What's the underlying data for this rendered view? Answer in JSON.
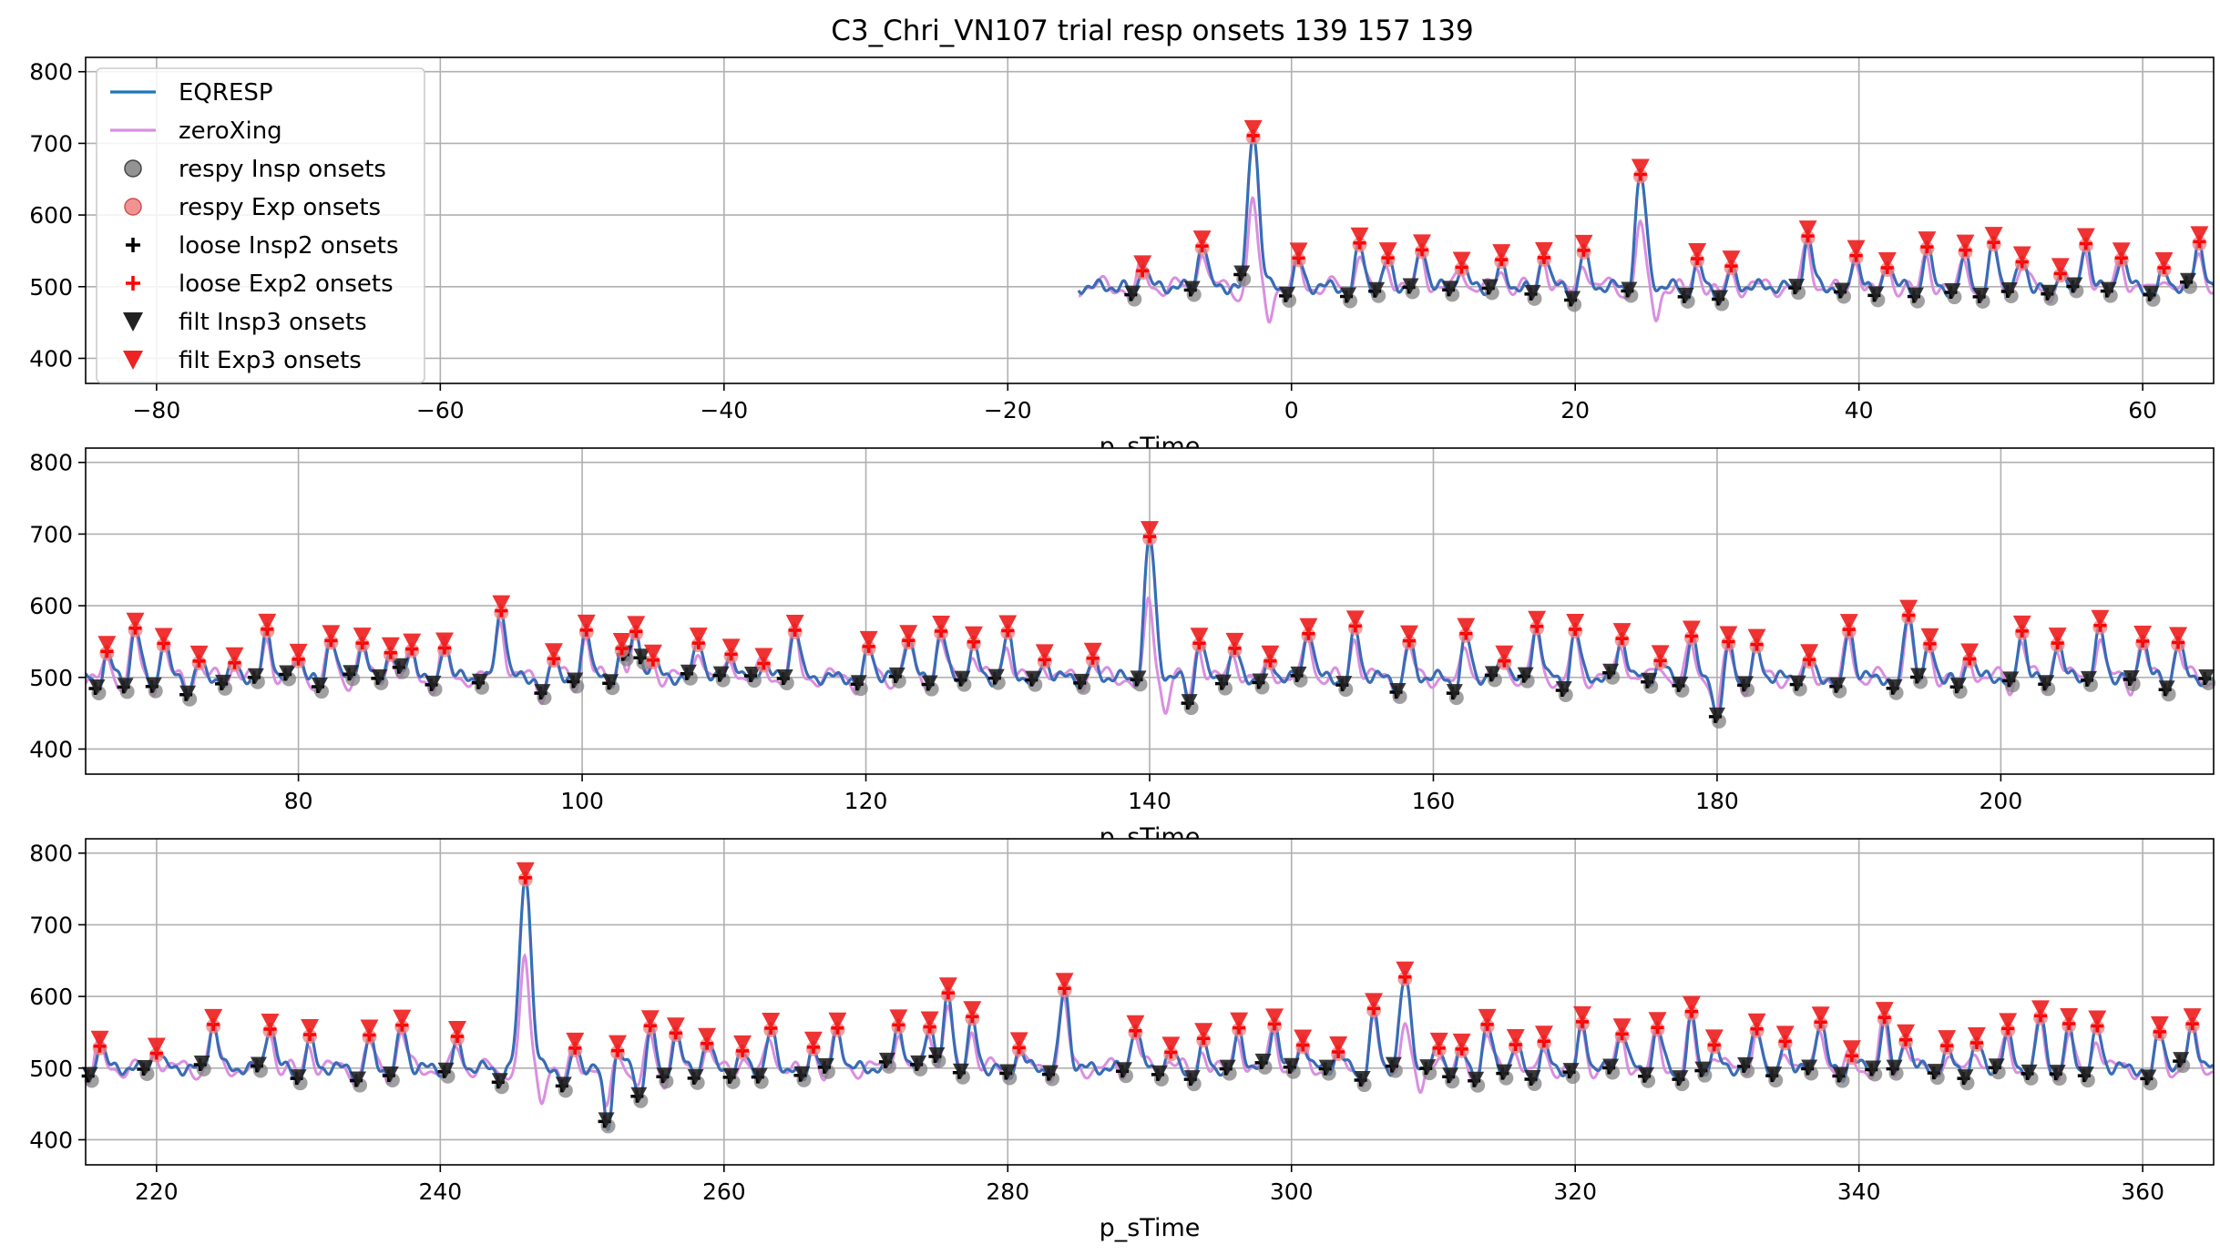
{
  "title": "C3_Chri_VN107 trial resp onsets 139 157 139",
  "legend": [
    {
      "label": "EQRESP",
      "kind": "line",
      "color": "#1f77b4"
    },
    {
      "label": "zeroXing",
      "kind": "line",
      "color": "#da8fe0"
    },
    {
      "label": "respy Insp onsets",
      "kind": "circle",
      "color": "#808080"
    },
    {
      "label": "respy Exp onsets",
      "kind": "circle",
      "color": "#f08080"
    },
    {
      "label": "loose Insp2 onsets",
      "kind": "plus",
      "color": "#000000"
    },
    {
      "label": "loose Exp2 onsets",
      "kind": "plus",
      "color": "#ff0000"
    },
    {
      "label": "filt Insp3 onsets",
      "kind": "tri",
      "color": "#222222"
    },
    {
      "label": "filt Exp3 onsets",
      "kind": "tri",
      "color": "#ee2222"
    }
  ],
  "chart_data": [
    {
      "type": "line",
      "xlabel": "p_sTime",
      "ylabel": "",
      "xlim": [
        -85,
        65
      ],
      "ylim": [
        365,
        820
      ],
      "xticks": [
        -80,
        -60,
        -40,
        -20,
        0,
        20,
        40,
        60
      ],
      "yticks": [
        400,
        500,
        600,
        700,
        800
      ],
      "grid": true,
      "legend_position": "top-left",
      "signal_start": -15,
      "big_peaks": [
        {
          "x": -2.7,
          "y": 720
        },
        {
          "x": 24.6,
          "y": 655
        }
      ],
      "exp_onsets": [
        -10.5,
        -6.3,
        -2.7,
        0.5,
        4.8,
        6.8,
        9.2,
        12,
        14.8,
        17.8,
        20.6,
        24.6,
        28.6,
        31,
        36.4,
        39.8,
        42,
        44.8,
        47.5,
        49.5,
        51.5,
        54.2,
        56,
        58.5,
        61.5,
        64
      ],
      "insp_onsets": [
        -11.2,
        -7,
        -3.5,
        -0.3,
        4,
        6,
        8.4,
        11.2,
        14,
        17,
        19.8,
        23.8,
        27.8,
        30.2,
        35.6,
        38.8,
        41.2,
        44,
        46.6,
        48.6,
        50.6,
        53.4,
        55.2,
        57.6,
        60.6,
        63.2
      ]
    },
    {
      "type": "line",
      "xlabel": "p_sTime",
      "ylabel": "",
      "xlim": [
        65,
        215
      ],
      "ylim": [
        365,
        820
      ],
      "xticks": [
        80,
        100,
        120,
        140,
        160,
        180,
        200
      ],
      "yticks": [
        400,
        500,
        600,
        700,
        800
      ],
      "grid": true,
      "signal_start": 65,
      "big_peaks": [
        {
          "x": 140,
          "y": 695
        },
        {
          "x": 94.3,
          "y": 600
        },
        {
          "x": 193.5,
          "y": 595
        }
      ],
      "dips": [
        {
          "x": 180.3,
          "y": 435
        },
        {
          "x": 97.5,
          "y": 470
        },
        {
          "x": 143.5,
          "y": 460
        },
        {
          "x": 189,
          "y": 475
        }
      ],
      "exp_onsets": [
        66.5,
        68.5,
        70.5,
        73,
        75.5,
        77.8,
        80,
        82.3,
        84.5,
        86.5,
        88,
        90.3,
        94.3,
        98,
        100.3,
        102.8,
        103.8,
        105,
        108.2,
        110.5,
        112.8,
        115,
        120.2,
        123,
        125.3,
        127.6,
        130,
        132.6,
        136,
        140,
        143.5,
        146,
        148.5,
        151.2,
        154.5,
        158.3,
        162.3,
        165,
        167.3,
        170,
        173.3,
        176,
        178.2,
        180.8,
        182.8,
        186.5,
        189.3,
        193.5,
        195,
        197.8,
        201.5,
        204,
        207,
        210,
        212.5
      ],
      "insp_onsets": [
        65.8,
        67.8,
        69.8,
        72.2,
        74.7,
        77,
        79.2,
        81.5,
        83.7,
        85.7,
        87.2,
        89.5,
        92.8,
        97.2,
        99.5,
        102,
        103,
        104.2,
        107.5,
        109.8,
        112,
        114.3,
        119.5,
        122.2,
        124.5,
        126.8,
        129.2,
        131.8,
        135.2,
        139.2,
        142.8,
        145.2,
        147.8,
        150.5,
        153.7,
        157.5,
        161.5,
        164.2,
        166.5,
        169.2,
        172.5,
        175.2,
        177.4,
        180,
        182,
        185.7,
        188.5,
        192.5,
        194.2,
        197,
        200.7,
        203.2,
        206.2,
        209.2,
        211.7,
        214.5
      ]
    },
    {
      "type": "line",
      "xlabel": "p_sTime",
      "ylabel": "",
      "xlim": [
        215,
        365
      ],
      "ylim": [
        365,
        820
      ],
      "xticks": [
        220,
        240,
        260,
        280,
        300,
        320,
        340,
        360
      ],
      "yticks": [
        400,
        500,
        600,
        700,
        800
      ],
      "grid": true,
      "signal_start": 215,
      "big_peaks": [
        {
          "x": 246,
          "y": 775
        },
        {
          "x": 308,
          "y": 625
        },
        {
          "x": 284,
          "y": 610
        },
        {
          "x": 275.5,
          "y": 600
        }
      ],
      "dips": [
        {
          "x": 250.8,
          "y": 415
        },
        {
          "x": 253.8,
          "y": 455
        },
        {
          "x": 249.5,
          "y": 470
        }
      ],
      "exp_onsets": [
        216,
        220,
        224,
        228,
        230.8,
        235,
        237.3,
        241.2,
        246,
        249.5,
        252.5,
        254.8,
        256.6,
        258.8,
        261.3,
        263.3,
        266.3,
        268,
        272.3,
        274.5,
        275.8,
        277.5,
        280.8,
        284,
        289,
        291.5,
        293.8,
        296.3,
        298.8,
        300.8,
        303.3,
        305.8,
        308,
        310.4,
        312,
        313.8,
        315.8,
        317.8,
        320.5,
        323.3,
        325.8,
        328.2,
        329.8,
        332.8,
        334.8,
        337.3,
        339.5,
        341.8,
        343.3,
        346.2,
        348.3,
        350.5,
        352.8,
        354.8,
        356.8,
        361.2,
        363.5
      ],
      "insp_onsets": [
        215.3,
        219.2,
        223.2,
        227.2,
        230,
        234.2,
        236.5,
        240.4,
        244.2,
        248.7,
        251.7,
        254,
        255.8,
        258,
        260.5,
        262.5,
        265.5,
        267.2,
        271.5,
        273.7,
        275,
        276.7,
        280,
        283,
        288.2,
        290.7,
        293,
        295.5,
        298,
        300,
        302.5,
        305,
        307.2,
        309.6,
        311.2,
        313,
        315,
        317,
        319.7,
        322.5,
        325,
        327.4,
        329,
        332,
        334,
        336.5,
        338.7,
        341,
        342.5,
        345.4,
        347.5,
        349.7,
        352,
        354,
        356,
        360.4,
        362.7
      ]
    }
  ]
}
